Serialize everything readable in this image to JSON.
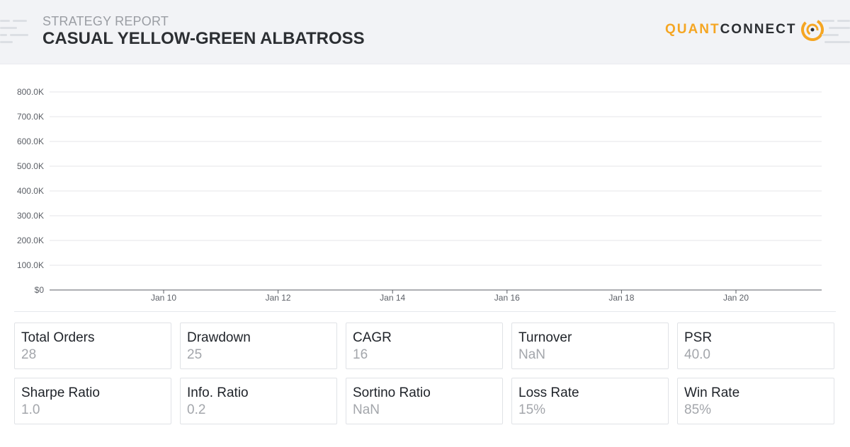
{
  "header": {
    "subtitle": "STRATEGY REPORT",
    "title": "CASUAL YELLOW-GREEN ALBATROSS"
  },
  "logo": {
    "part1": "QUANT",
    "part2": "CONNECT",
    "accent_color": "#f5a623"
  },
  "chart_data": {
    "type": "line",
    "title": "",
    "xlabel": "",
    "ylabel": "",
    "ylim": [
      0,
      800000
    ],
    "y_ticks": [
      "$0",
      "100.0K",
      "200.0K",
      "300.0K",
      "400.0K",
      "500.0K",
      "600.0K",
      "700.0K",
      "800.0K"
    ],
    "x_ticks": [
      "Jan 10",
      "Jan 12",
      "Jan 14",
      "Jan 16",
      "Jan 18",
      "Jan 20"
    ],
    "grid": true,
    "series": []
  },
  "stats": [
    {
      "label": "Total Orders",
      "value": "28"
    },
    {
      "label": "Drawdown",
      "value": "25"
    },
    {
      "label": "CAGR",
      "value": "16"
    },
    {
      "label": "Turnover",
      "value": "NaN"
    },
    {
      "label": "PSR",
      "value": "40.0"
    },
    {
      "label": "Sharpe Ratio",
      "value": "1.0"
    },
    {
      "label": "Info. Ratio",
      "value": "0.2"
    },
    {
      "label": "Sortino Ratio",
      "value": "NaN"
    },
    {
      "label": "Loss Rate",
      "value": "15%"
    },
    {
      "label": "Win Rate",
      "value": "85%"
    }
  ]
}
